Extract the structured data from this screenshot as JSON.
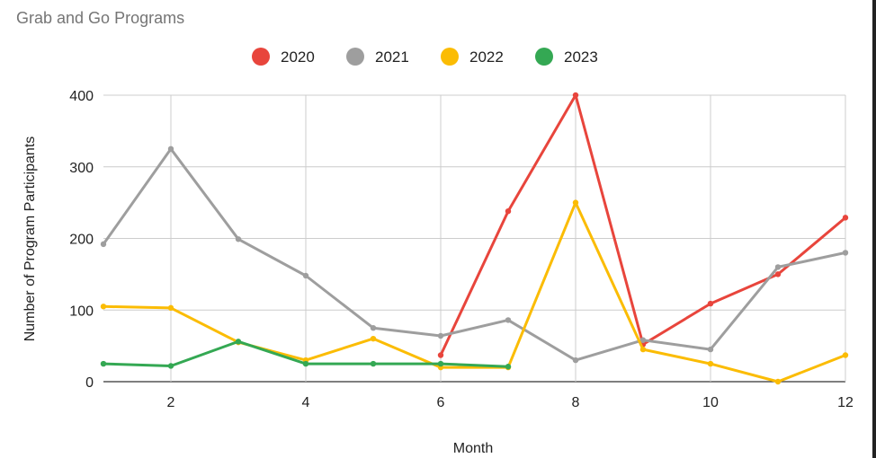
{
  "chart_data": {
    "type": "line",
    "title": "Grab and Go Programs",
    "xlabel": "Month",
    "ylabel": "Number of Program Participants",
    "xlim": [
      1,
      12
    ],
    "ylim": [
      0,
      400
    ],
    "x_ticks": [
      2,
      4,
      6,
      8,
      10,
      12
    ],
    "y_ticks": [
      0,
      100,
      200,
      300,
      400
    ],
    "grid": true,
    "legend": "top",
    "series": [
      {
        "name": "2020",
        "color": "#e8453c",
        "x": [
          6,
          7,
          8,
          9,
          10,
          11,
          12
        ],
        "values": [
          37,
          238,
          400,
          52,
          109,
          150,
          229
        ]
      },
      {
        "name": "2021",
        "color": "#9e9e9e",
        "x": [
          1,
          2,
          3,
          4,
          5,
          6,
          7,
          8,
          9,
          10,
          11,
          12
        ],
        "values": [
          192,
          325,
          199,
          148,
          75,
          64,
          86,
          30,
          58,
          45,
          160,
          180
        ]
      },
      {
        "name": "2022",
        "color": "#fbbc04",
        "x": [
          1,
          2,
          3,
          4,
          5,
          6,
          7,
          8,
          9,
          10,
          11,
          12
        ],
        "values": [
          105,
          103,
          55,
          30,
          60,
          20,
          20,
          250,
          45,
          25,
          0,
          37
        ]
      },
      {
        "name": "2023",
        "color": "#34a853",
        "x": [
          1,
          2,
          3,
          4,
          5,
          6,
          7
        ],
        "values": [
          25,
          22,
          56,
          25,
          25,
          25,
          21
        ]
      }
    ]
  }
}
